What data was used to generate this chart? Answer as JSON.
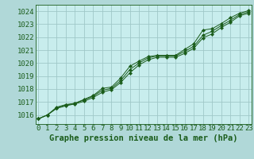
{
  "background_color": "#b0d8d8",
  "plot_bg_color": "#c8eded",
  "grid_color": "#a0c8c8",
  "line_color": "#1a5c1a",
  "marker_color": "#1a5c1a",
  "title": "Graphe pression niveau de la mer (hPa)",
  "tick_fontsize": 6.5,
  "title_fontsize": 7.5,
  "xticks": [
    0,
    1,
    2,
    3,
    4,
    5,
    6,
    7,
    8,
    9,
    10,
    11,
    12,
    13,
    14,
    15,
    16,
    17,
    18,
    19,
    20,
    21,
    22,
    23
  ],
  "yticks": [
    1016,
    1017,
    1018,
    1019,
    1020,
    1021,
    1022,
    1023,
    1024
  ],
  "ylim": [
    1015.3,
    1024.5
  ],
  "xlim": [
    -0.3,
    23.3
  ],
  "series": [
    [
      1015.7,
      1016.0,
      1016.6,
      1016.8,
      1016.9,
      1017.2,
      1017.5,
      1018.05,
      1018.15,
      1018.85,
      1019.75,
      1020.15,
      1020.5,
      1020.6,
      1020.6,
      1020.6,
      1021.05,
      1021.5,
      1022.55,
      1022.65,
      1023.05,
      1023.5,
      1023.85,
      1024.05
    ],
    [
      1015.7,
      1016.0,
      1016.5,
      1016.7,
      1016.85,
      1017.05,
      1017.35,
      1017.75,
      1017.95,
      1018.5,
      1019.25,
      1019.85,
      1020.25,
      1020.45,
      1020.45,
      1020.45,
      1020.75,
      1021.15,
      1021.95,
      1022.25,
      1022.75,
      1023.15,
      1023.65,
      1023.85
    ],
    [
      1015.7,
      1016.0,
      1016.55,
      1016.75,
      1016.9,
      1017.15,
      1017.45,
      1017.9,
      1018.05,
      1018.65,
      1019.5,
      1020.0,
      1020.4,
      1020.55,
      1020.55,
      1020.55,
      1020.9,
      1021.3,
      1022.15,
      1022.45,
      1022.9,
      1023.3,
      1023.75,
      1023.95
    ]
  ]
}
